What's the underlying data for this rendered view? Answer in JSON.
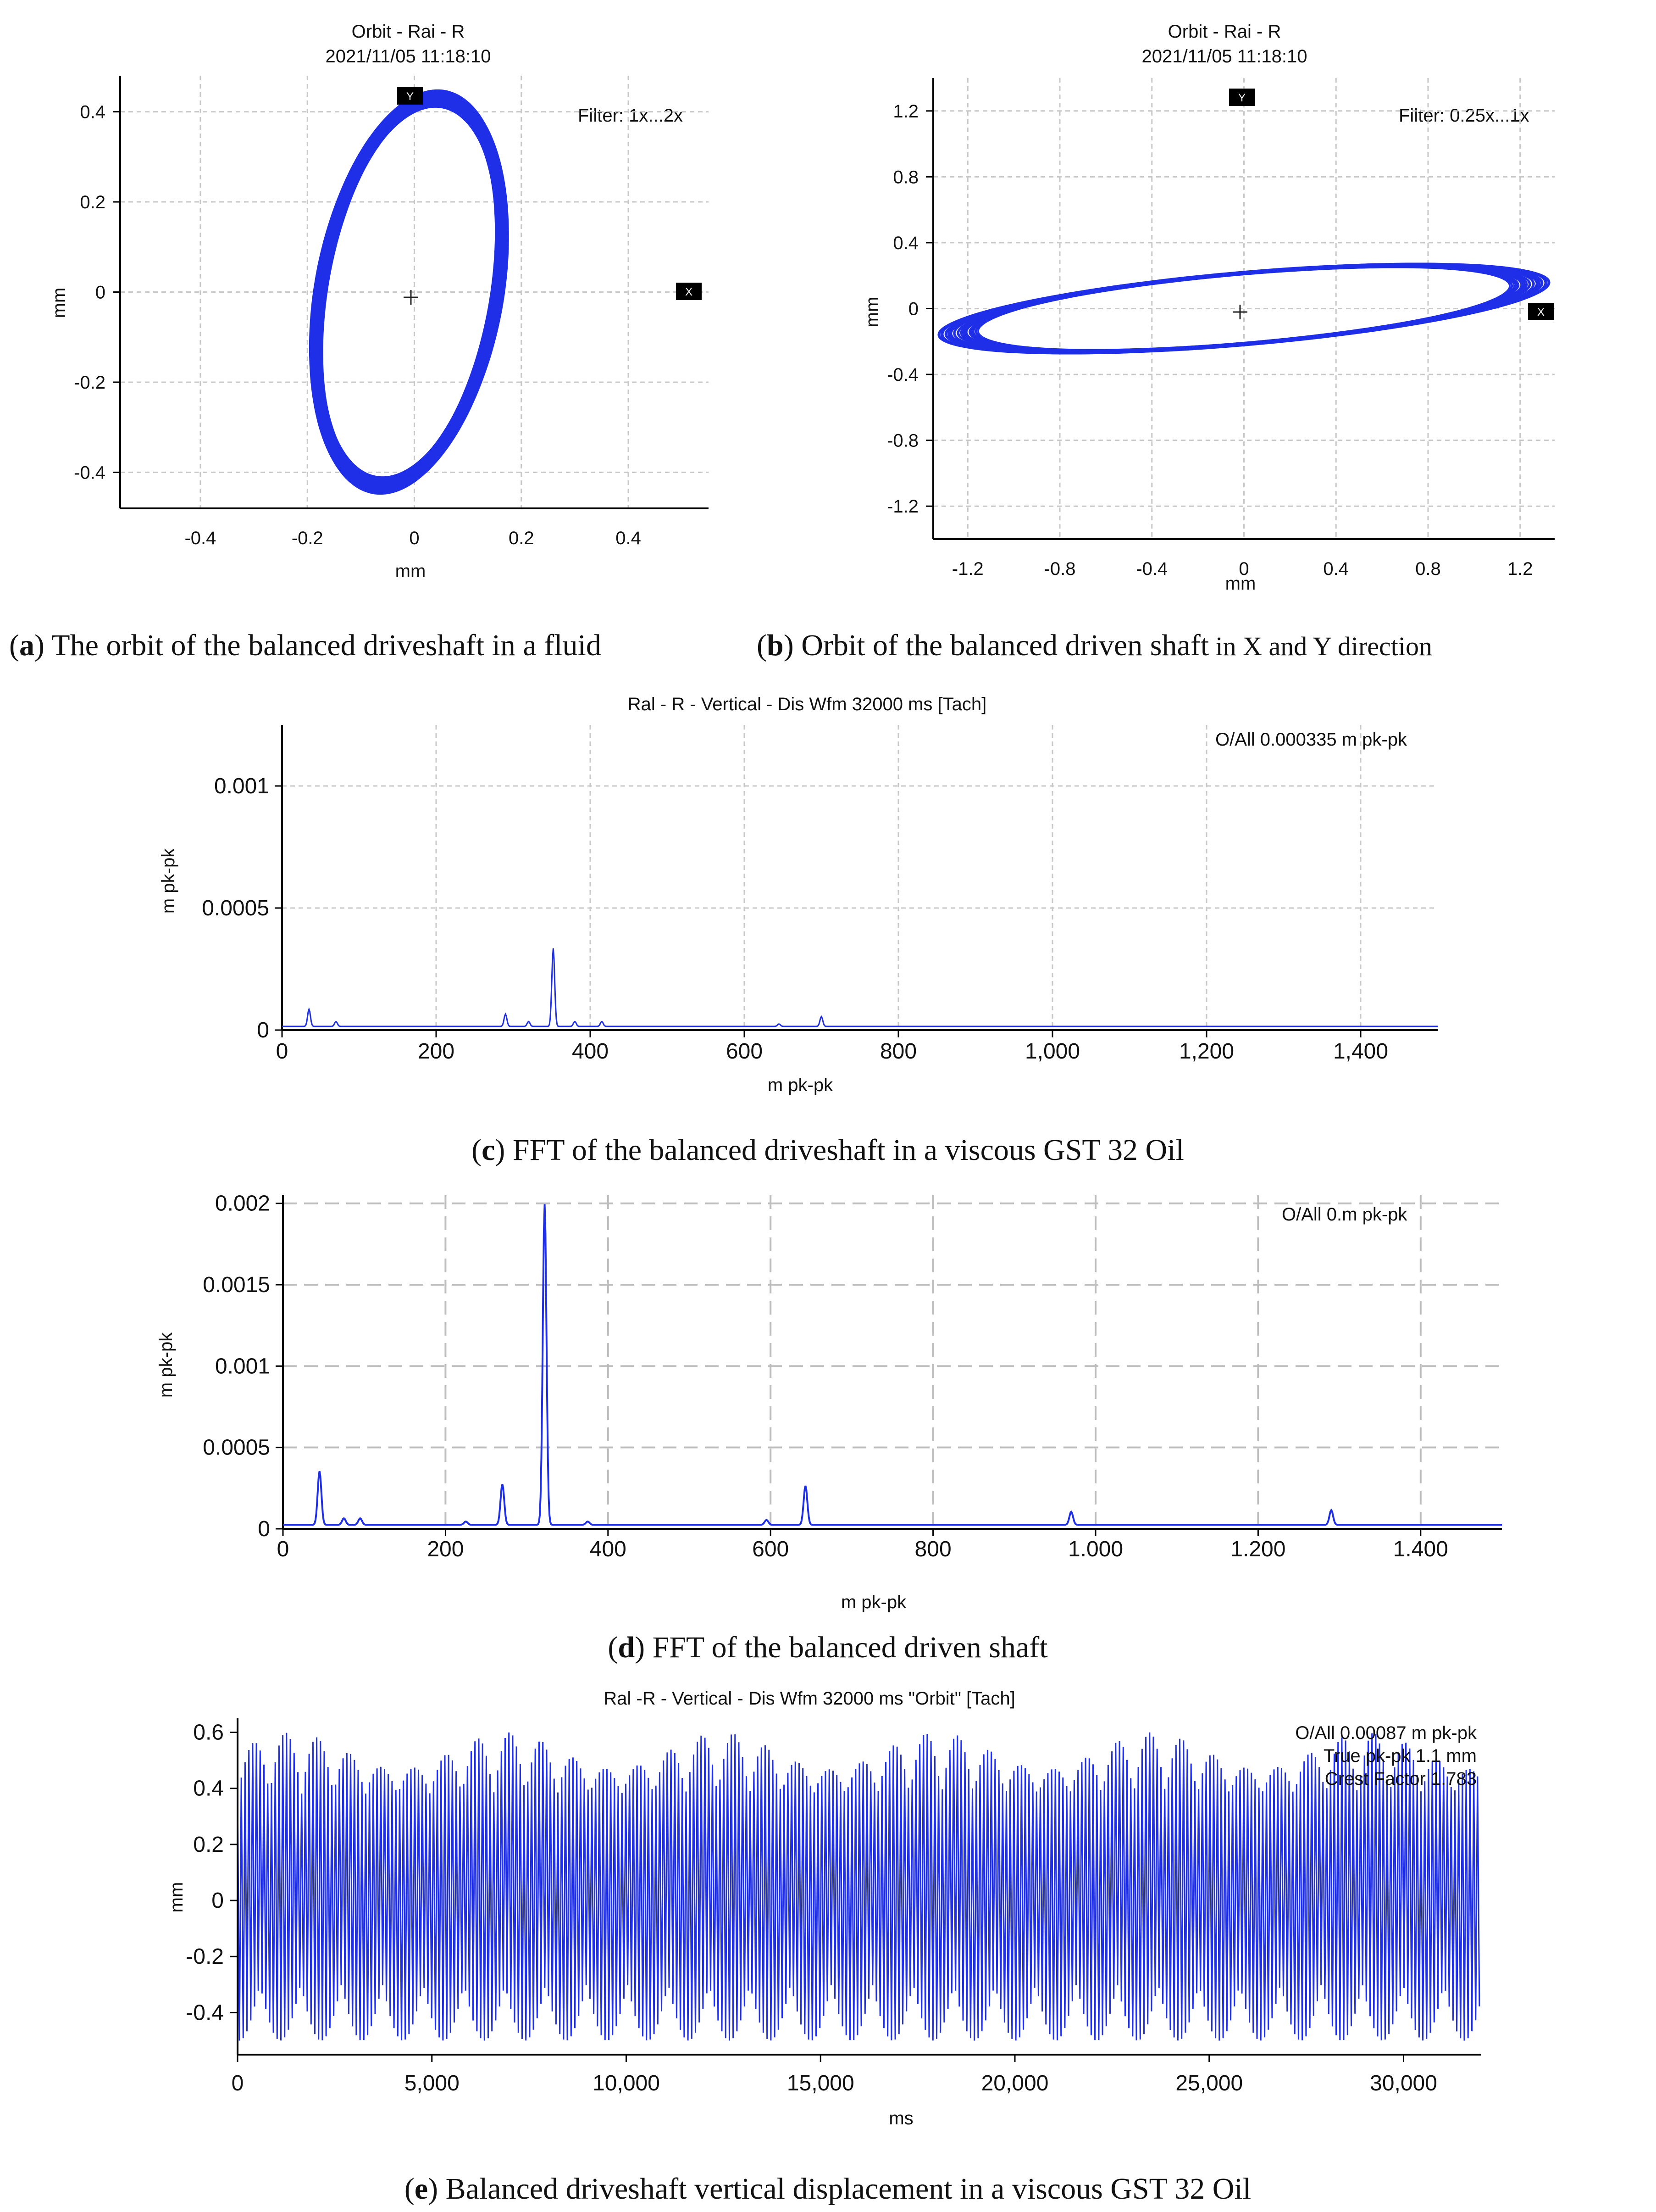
{
  "colors": {
    "signal": "#1f2fe8",
    "signal_dark": "#2a2ac8",
    "grid": "#c8c8c8"
  },
  "panels": {
    "a": {
      "caption_label": "a",
      "caption_text": " The orbit of the balanced driveshaft in a fluid",
      "chart_data": {
        "type": "scatter",
        "title": "Orbit - Rai - R",
        "subtitle": "2021/11/05 11:18:10",
        "filter": "Filter: 1x...2x",
        "xlabel": "mm",
        "ylabel": "mm",
        "xlim": [
          -0.55,
          0.55
        ],
        "ylim": [
          -0.48,
          0.48
        ],
        "xticks": [
          "-0.4",
          "-0.2",
          "0",
          "0.2",
          "0.4"
        ],
        "yticks": [
          "0.4",
          "0.2",
          "0",
          "-0.2",
          "-0.4"
        ],
        "marker_x": "X",
        "marker_y": "Y",
        "orbit": {
          "cx": -0.01,
          "cy": 0.0,
          "rx": 0.175,
          "ry": 0.445,
          "tilt_deg": -8
        }
      }
    },
    "b": {
      "caption_label": "b",
      "caption_text": " Orbit of the balanced driven shaft",
      "caption_small": " in X and Y direction",
      "chart_data": {
        "type": "scatter",
        "title": "Orbit - Rai - R",
        "subtitle": "2021/11/05 11:18:10",
        "filter": "Filter: 0.25x...1x",
        "xlabel": "mm",
        "ylabel": "mm",
        "xlim": [
          -1.35,
          1.35
        ],
        "ylim": [
          -1.4,
          1.4
        ],
        "xticks": [
          "-1.2",
          "-0.8",
          "-0.4",
          "0",
          "0.4",
          "0.8",
          "1.2"
        ],
        "yticks": [
          "1.2",
          "0.8",
          "0.4",
          "0",
          "-0.4",
          "-0.8",
          "-1.2"
        ],
        "marker_x": "X",
        "marker_y": "Y",
        "orbit": {
          "cx": 0.0,
          "cy": 0.0,
          "rx": 1.33,
          "ry": 0.22,
          "tilt_deg": 7
        }
      }
    },
    "c": {
      "caption_label": "c",
      "caption_text": " FFT of the balanced driveshaft in a viscous GST 32 Oil",
      "chart_data": {
        "type": "line",
        "title": "Ral - R - Vertical - Dis Wfm 32000 ms [Tach]",
        "info": "O/All 0.000335 m pk-pk",
        "xlabel": "m pk-pk",
        "ylabel": "m pk-pk",
        "xlim": [
          0,
          1500
        ],
        "ylim": [
          0,
          0.00125
        ],
        "xticks": [
          "0",
          "200",
          "400",
          "600",
          "800",
          "1,000",
          "1,200",
          "1,400"
        ],
        "yticks": [
          "0.001",
          "0.0005",
          "0"
        ],
        "peaks": [
          [
            35,
            7e-05
          ],
          [
            70,
            2e-05
          ],
          [
            290,
            5e-05
          ],
          [
            320,
            2e-05
          ],
          [
            352,
            0.00032
          ],
          [
            380,
            2e-05
          ],
          [
            415,
            2e-05
          ],
          [
            645,
            1e-05
          ],
          [
            700,
            4e-05
          ]
        ]
      }
    },
    "d": {
      "caption_label": "d",
      "caption_text": " FFT of the balanced driven shaft",
      "chart_data": {
        "type": "line",
        "info": "O/All 0.m pk-pk",
        "xlabel": "m pk-pk",
        "ylabel": "m pk-pk",
        "xlim": [
          0,
          1500
        ],
        "ylim": [
          0,
          0.00205
        ],
        "xticks": [
          "0",
          "200",
          "400",
          "600",
          "800",
          "1.000",
          "1.200",
          "1.400"
        ],
        "yticks": [
          "0.002",
          "0.0015",
          "0.001",
          "0.0005",
          "0"
        ],
        "peaks": [
          [
            45,
            0.00033
          ],
          [
            75,
            4e-05
          ],
          [
            95,
            4e-05
          ],
          [
            225,
            2e-05
          ],
          [
            270,
            0.00025
          ],
          [
            322,
            0.00197
          ],
          [
            375,
            2e-05
          ],
          [
            595,
            3e-05
          ],
          [
            643,
            0.00024
          ],
          [
            970,
            8e-05
          ],
          [
            1290,
            9e-05
          ]
        ]
      }
    },
    "e": {
      "caption_label": "e",
      "caption_text": " Balanced driveshaft vertical displacement in a viscous GST 32 Oil",
      "chart_data": {
        "type": "line",
        "title": "Ral -R - Vertical - Dis Wfm 32000 ms \"Orbit\" [Tach]",
        "info_lines": [
          "O/All 0.00087 m pk-pk",
          "True pk-pk 1.1 mm",
          "Crest Factor 1.783"
        ],
        "xlabel": "ms",
        "ylabel": "mm",
        "xlim": [
          0,
          32000
        ],
        "ylim": [
          -0.55,
          0.65
        ],
        "xticks": [
          "0",
          "5,000",
          "10,000",
          "15,000",
          "20,000",
          "25,000",
          "30,000"
        ],
        "yticks": [
          "0.6",
          "0.4",
          "0.2",
          "0",
          "-0.2",
          "-0.4"
        ],
        "waveform": {
          "max": 0.6,
          "min": -0.5,
          "cycles": 330
        }
      }
    }
  }
}
